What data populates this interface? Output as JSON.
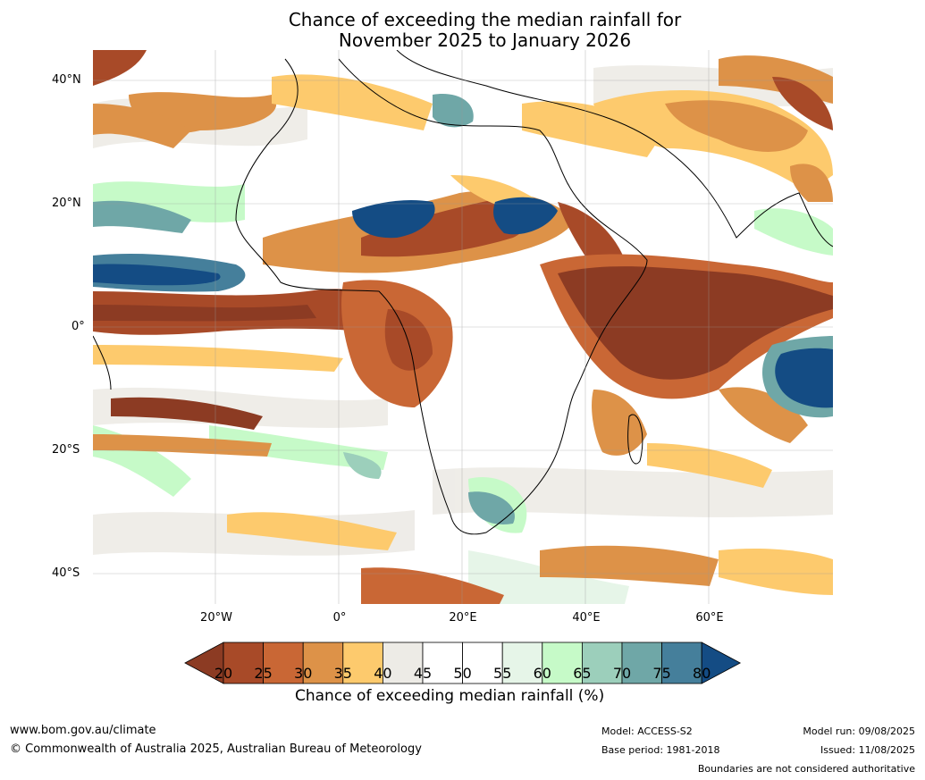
{
  "title": {
    "line1": "Chance of exceeding the median rainfall for",
    "line2": "November 2025 to January 2026"
  },
  "map": {
    "lat_labels": [
      "40°N",
      "20°N",
      "0°",
      "20°S",
      "40°S"
    ],
    "lon_labels": [
      "20°W",
      "0°",
      "20°E",
      "40°E",
      "60°E"
    ]
  },
  "colorbar": {
    "ticks": [
      "20",
      "25",
      "30",
      "35",
      "40",
      "45",
      "50",
      "55",
      "60",
      "65",
      "70",
      "75",
      "80"
    ],
    "colors": [
      "#8c3b23",
      "#a84a28",
      "#c96735",
      "#dd9248",
      "#fdca6d",
      "#edebe6",
      "#ffffff",
      "#ffffff",
      "#e6f5e8",
      "#c6fac8",
      "#9ccfbb",
      "#6fa7a7",
      "#457f9b",
      "#144c84"
    ],
    "title": "Chance of exceeding median rainfall (%)"
  },
  "footer": {
    "url": "www.bom.gov.au/climate",
    "copyright": "© Commonwealth of Australia 2025, Australian Bureau of Meteorology",
    "model": "Model: ACCESS-S2",
    "base_period": "Base period: 1981-2018",
    "model_run": "Model run: 09/08/2025",
    "issued": "Issued: 11/08/2025",
    "disclaimer": "Boundaries are not considered authoritative"
  }
}
